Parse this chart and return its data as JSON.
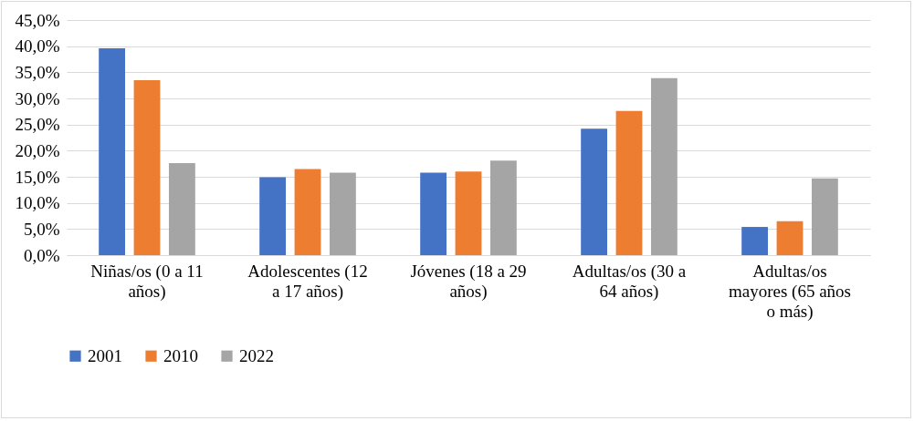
{
  "chart_data": {
    "type": "bar",
    "categories": [
      "Niñas/os  (0 a 11 años)",
      "Adolescentes (12 a 17 años)",
      "Jóvenes (18 a 29 años)",
      "Adultas/os (30 a 64 años)",
      "Adultas/os mayores (65 años o más)"
    ],
    "series": [
      {
        "name": "2001",
        "color": "#4472c4",
        "values": [
          39.6,
          14.9,
          15.8,
          24.2,
          5.4
        ]
      },
      {
        "name": "2010",
        "color": "#ed7d31",
        "values": [
          33.5,
          16.5,
          16.0,
          27.6,
          6.5
        ]
      },
      {
        "name": "2022",
        "color": "#a5a5a5",
        "values": [
          17.6,
          15.8,
          18.1,
          33.9,
          14.7
        ]
      }
    ],
    "ylim": [
      0,
      45
    ],
    "yticks": [
      {
        "value": 0,
        "label": "0,0%"
      },
      {
        "value": 5,
        "label": "5,0%"
      },
      {
        "value": 10,
        "label": "10,0%"
      },
      {
        "value": 15,
        "label": "15,0%"
      },
      {
        "value": 20,
        "label": "20,0%"
      },
      {
        "value": 25,
        "label": "25,0%"
      },
      {
        "value": 30,
        "label": "30,0%"
      },
      {
        "value": 35,
        "label": "35,0%"
      },
      {
        "value": 40,
        "label": "40,0%"
      },
      {
        "value": 45,
        "label": "45,0%"
      }
    ],
    "grid": "y",
    "legend": "bottom"
  }
}
